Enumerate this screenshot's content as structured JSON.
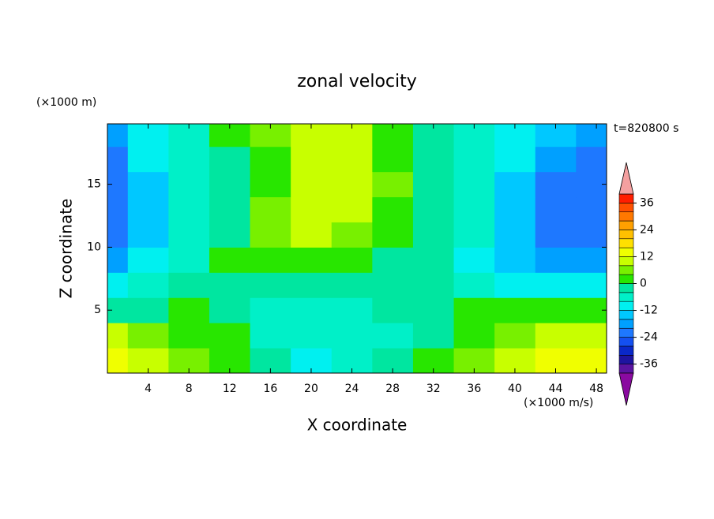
{
  "chart_data": {
    "type": "contour",
    "title": "zonal velocity",
    "y_unit_label": "(×1000 m)",
    "x_unit_label": "(×1000 m/s)",
    "annotation": "t=820800 s",
    "xlabel": "X coordinate",
    "ylabel": "Z coordinate",
    "x": [
      0,
      4,
      8,
      12,
      16,
      20,
      24,
      28,
      32,
      36,
      40,
      44,
      48
    ],
    "y": [
      1,
      3,
      5,
      7,
      9,
      11,
      13,
      15,
      17,
      19
    ],
    "z": [
      [
        14,
        10,
        4,
        2,
        -2,
        -10,
        -6,
        -4,
        2,
        4,
        10,
        14,
        14
      ],
      [
        10,
        6,
        2,
        2,
        -6,
        -8,
        -8,
        -6,
        -2,
        2,
        6,
        10,
        10
      ],
      [
        -2,
        -2,
        2,
        -2,
        -6,
        -8,
        -6,
        -4,
        -4,
        2,
        2,
        2,
        2
      ],
      [
        -12,
        -8,
        -4,
        -2,
        -4,
        -4,
        -2,
        -2,
        -4,
        -6,
        -10,
        -12,
        -12
      ],
      [
        -18,
        -12,
        -6,
        2,
        2,
        2,
        2,
        -2,
        -4,
        -10,
        -14,
        -18,
        -18
      ],
      [
        -22,
        -14,
        -6,
        -2,
        6,
        10,
        6,
        2,
        -2,
        -8,
        -16,
        -22,
        -22
      ],
      [
        -22,
        -14,
        -8,
        -2,
        6,
        10,
        8,
        2,
        -2,
        -8,
        -16,
        -22,
        -22
      ],
      [
        -22,
        -14,
        -8,
        -4,
        2,
        10,
        10,
        4,
        -2,
        -8,
        -14,
        -22,
        -22
      ],
      [
        -22,
        -12,
        -6,
        -2,
        2,
        10,
        10,
        2,
        -2,
        -6,
        -12,
        -20,
        -22
      ],
      [
        -18,
        -10,
        -6,
        2,
        6,
        10,
        10,
        2,
        -2,
        -6,
        -10,
        -14,
        -18
      ]
    ],
    "xlim": [
      0,
      49
    ],
    "ylim": [
      0,
      19.8
    ],
    "xticks": [
      4,
      8,
      12,
      16,
      20,
      24,
      28,
      32,
      36,
      40,
      44,
      48
    ],
    "yticks": [
      5,
      10,
      15
    ],
    "levels": [
      -40,
      -36,
      -32,
      -28,
      -24,
      -20,
      -16,
      -12,
      -8,
      -4,
      0,
      4,
      8,
      12,
      16,
      20,
      24,
      28,
      32,
      36,
      40
    ],
    "colors": [
      "#5a14a0",
      "#1e14a0",
      "#0a28c8",
      "#1450f0",
      "#1e78ff",
      "#00a0ff",
      "#00c8ff",
      "#00f0f0",
      "#00f0c8",
      "#00e6a0",
      "#28e600",
      "#78f000",
      "#c8ff00",
      "#f0ff00",
      "#ffe000",
      "#ffc000",
      "#ffa000",
      "#ff7800",
      "#ff5000",
      "#ff1e00"
    ],
    "extend_colors": [
      "#8a0aa0",
      "#f4a0a0"
    ],
    "colorbar_ticks": [
      -36,
      -24,
      -12,
      0,
      12,
      24,
      36
    ]
  }
}
